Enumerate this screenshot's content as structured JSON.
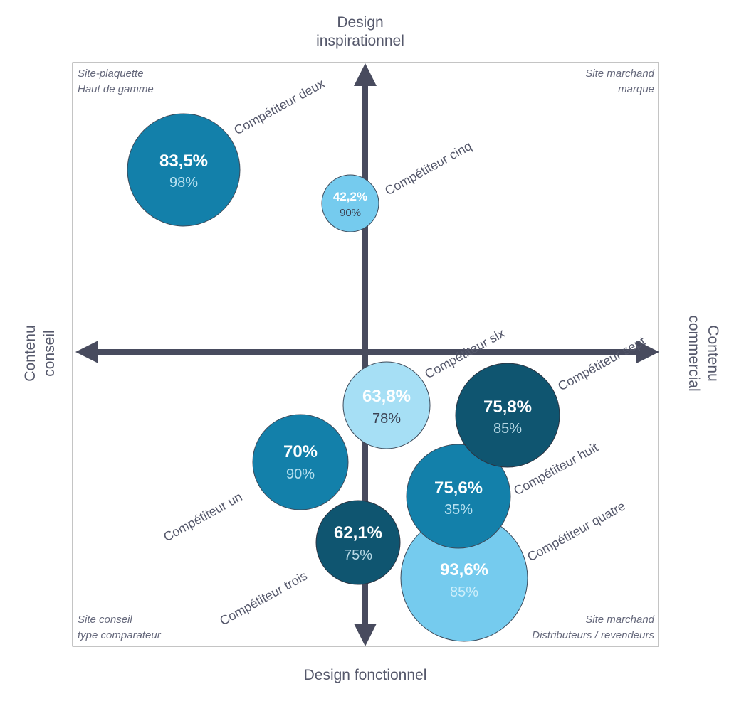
{
  "axes": {
    "top": [
      "Design",
      "inspirationnel"
    ],
    "bottom": "Design fonctionnel",
    "left": [
      "Contenu",
      "conseil"
    ],
    "right": [
      "Contenu",
      "commercial"
    ]
  },
  "quadrants": {
    "top_left": [
      "Site-plaquette",
      "Haut de gamme"
    ],
    "top_right": [
      "Site marchand",
      "marque"
    ],
    "bottom_left": [
      "Site conseil",
      "type comparateur"
    ],
    "bottom_right": [
      "Site marchand",
      "Distributeurs / revendeurs"
    ]
  },
  "colors": {
    "axis": "#484b5e",
    "frame": "#8a8a8a",
    "text": "#55586b",
    "dark": "#0f5570",
    "medium": "#1380aa",
    "light": "#75cbee",
    "pale": "#a6dff5"
  },
  "competitors": [
    {
      "name": "Compétiteur deux",
      "value": "83,5%",
      "sub": "98%",
      "tone": "medium"
    },
    {
      "name": "Compétiteur cinq",
      "value": "42,2%",
      "sub": "90%",
      "tone": "light"
    },
    {
      "name": "Compétiteur six",
      "value": "63,8%",
      "sub": "78%",
      "tone": "pale"
    },
    {
      "name": "Compétiteur sept",
      "value": "75,8%",
      "sub": "85%",
      "tone": "dark"
    },
    {
      "name": "Compétiteur un",
      "value": "70%",
      "sub": "90%",
      "tone": "medium"
    },
    {
      "name": "Compétiteur quatre",
      "value": "93,6%",
      "sub": "85%",
      "tone": "light"
    },
    {
      "name": "Compétiteur huit",
      "value": "75,6%",
      "sub": "35%",
      "tone": "medium"
    },
    {
      "name": "Compétiteur trois",
      "value": "62,1%",
      "sub": "75%",
      "tone": "dark"
    }
  ]
}
